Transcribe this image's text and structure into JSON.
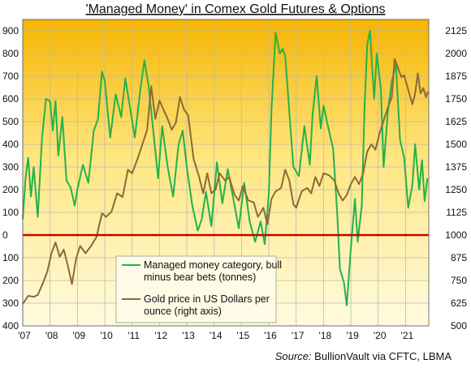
{
  "chart_data": {
    "type": "line",
    "title": "'Managed Money' in Comex Gold Futures & Options",
    "source_label": "Source:",
    "source_text": "BullionVault via CFTC, LBMA",
    "x_tick_labels": [
      "'07",
      "'08",
      "'09",
      "'10",
      "'11",
      "'12",
      "'13",
      "'14",
      "'15",
      "'16",
      "'17",
      "'18",
      "'19",
      "'20",
      "'21"
    ],
    "x_ticks": [
      2007,
      2008,
      2009,
      2010,
      2011,
      2012,
      2013,
      2014,
      2015,
      2016,
      2017,
      2018,
      2019,
      2020,
      2021
    ],
    "xlim": [
      2007.0,
      2021.85
    ],
    "left_axis": {
      "ylim": [
        -400,
        950
      ],
      "ticks": [
        -400,
        -300,
        -200,
        -100,
        0,
        100,
        200,
        300,
        400,
        500,
        600,
        700,
        800,
        900
      ],
      "tick_labels": [
        "400",
        "300",
        "200",
        "100",
        "0",
        "100",
        "200",
        "300",
        "400",
        "500",
        "600",
        "700",
        "800",
        "900"
      ]
    },
    "right_axis": {
      "ylim": [
        500,
        2187.5
      ],
      "ticks": [
        500,
        625,
        750,
        875,
        1000,
        1125,
        1250,
        1375,
        1500,
        1625,
        1750,
        1875,
        2000,
        2125
      ]
    },
    "zero_line": {
      "value": 0,
      "color": "#cc0000"
    },
    "legend_position": "lower-center",
    "series": [
      {
        "name": "Managed money category, bull minus bear bets (tonnes)",
        "axis": "left",
        "color": "#22b24c",
        "points": [
          [
            2007.0,
            70
          ],
          [
            2007.1,
            250
          ],
          [
            2007.2,
            340
          ],
          [
            2007.3,
            170
          ],
          [
            2007.4,
            300
          ],
          [
            2007.55,
            80
          ],
          [
            2007.7,
            420
          ],
          [
            2007.85,
            600
          ],
          [
            2008.0,
            590
          ],
          [
            2008.1,
            460
          ],
          [
            2008.2,
            590
          ],
          [
            2008.3,
            350
          ],
          [
            2008.45,
            520
          ],
          [
            2008.6,
            240
          ],
          [
            2008.75,
            210
          ],
          [
            2008.9,
            130
          ],
          [
            2009.0,
            200
          ],
          [
            2009.2,
            310
          ],
          [
            2009.4,
            230
          ],
          [
            2009.6,
            460
          ],
          [
            2009.75,
            510
          ],
          [
            2009.9,
            720
          ],
          [
            2010.0,
            680
          ],
          [
            2010.2,
            430
          ],
          [
            2010.4,
            620
          ],
          [
            2010.6,
            520
          ],
          [
            2010.75,
            690
          ],
          [
            2010.9,
            580
          ],
          [
            2011.1,
            430
          ],
          [
            2011.3,
            640
          ],
          [
            2011.45,
            770
          ],
          [
            2011.6,
            660
          ],
          [
            2011.8,
            430
          ],
          [
            2011.95,
            250
          ],
          [
            2012.1,
            480
          ],
          [
            2012.3,
            300
          ],
          [
            2012.5,
            170
          ],
          [
            2012.7,
            400
          ],
          [
            2012.85,
            460
          ],
          [
            2013.0,
            300
          ],
          [
            2013.2,
            130
          ],
          [
            2013.4,
            20
          ],
          [
            2013.55,
            70
          ],
          [
            2013.7,
            190
          ],
          [
            2013.9,
            40
          ],
          [
            2014.1,
            320
          ],
          [
            2014.3,
            140
          ],
          [
            2014.5,
            290
          ],
          [
            2014.7,
            160
          ],
          [
            2014.9,
            30
          ],
          [
            2015.1,
            230
          ],
          [
            2015.3,
            60
          ],
          [
            2015.5,
            -30
          ],
          [
            2015.7,
            60
          ],
          [
            2015.85,
            -40
          ],
          [
            2016.0,
            180
          ],
          [
            2016.1,
            560
          ],
          [
            2016.25,
            890
          ],
          [
            2016.4,
            800
          ],
          [
            2016.5,
            820
          ],
          [
            2016.6,
            790
          ],
          [
            2016.8,
            460
          ],
          [
            2016.9,
            300
          ],
          [
            2017.1,
            260
          ],
          [
            2017.3,
            480
          ],
          [
            2017.5,
            310
          ],
          [
            2017.6,
            530
          ],
          [
            2017.75,
            700
          ],
          [
            2017.9,
            470
          ],
          [
            2018.0,
            570
          ],
          [
            2018.2,
            460
          ],
          [
            2018.35,
            380
          ],
          [
            2018.5,
            100
          ],
          [
            2018.6,
            -150
          ],
          [
            2018.75,
            -210
          ],
          [
            2018.85,
            -310
          ],
          [
            2019.0,
            -60
          ],
          [
            2019.15,
            160
          ],
          [
            2019.25,
            -30
          ],
          [
            2019.4,
            130
          ],
          [
            2019.5,
            560
          ],
          [
            2019.6,
            840
          ],
          [
            2019.7,
            900
          ],
          [
            2019.85,
            600
          ],
          [
            2019.95,
            800
          ],
          [
            2020.1,
            640
          ],
          [
            2020.2,
            300
          ],
          [
            2020.35,
            540
          ],
          [
            2020.5,
            680
          ],
          [
            2020.65,
            750
          ],
          [
            2020.8,
            420
          ],
          [
            2020.95,
            340
          ],
          [
            2021.1,
            120
          ],
          [
            2021.25,
            220
          ],
          [
            2021.35,
            400
          ],
          [
            2021.5,
            200
          ],
          [
            2021.6,
            330
          ],
          [
            2021.7,
            150
          ],
          [
            2021.8,
            250
          ]
        ]
      },
      {
        "name": "Gold price in US Dollars per ounce (right axis)",
        "axis": "right",
        "color": "#8b6a38",
        "points": [
          [
            2007.0,
            620
          ],
          [
            2007.2,
            665
          ],
          [
            2007.4,
            660
          ],
          [
            2007.55,
            670
          ],
          [
            2007.75,
            740
          ],
          [
            2007.9,
            800
          ],
          [
            2008.05,
            900
          ],
          [
            2008.2,
            960
          ],
          [
            2008.35,
            880
          ],
          [
            2008.5,
            920
          ],
          [
            2008.65,
            830
          ],
          [
            2008.8,
            730
          ],
          [
            2008.95,
            870
          ],
          [
            2009.1,
            940
          ],
          [
            2009.3,
            900
          ],
          [
            2009.5,
            940
          ],
          [
            2009.7,
            990
          ],
          [
            2009.9,
            1120
          ],
          [
            2010.05,
            1100
          ],
          [
            2010.25,
            1130
          ],
          [
            2010.45,
            1230
          ],
          [
            2010.65,
            1210
          ],
          [
            2010.85,
            1360
          ],
          [
            2011.0,
            1340
          ],
          [
            2011.2,
            1420
          ],
          [
            2011.4,
            1510
          ],
          [
            2011.55,
            1580
          ],
          [
            2011.7,
            1820
          ],
          [
            2011.85,
            1640
          ],
          [
            2012.0,
            1740
          ],
          [
            2012.15,
            1690
          ],
          [
            2012.3,
            1640
          ],
          [
            2012.45,
            1580
          ],
          [
            2012.6,
            1620
          ],
          [
            2012.75,
            1760
          ],
          [
            2012.9,
            1690
          ],
          [
            2013.05,
            1660
          ],
          [
            2013.25,
            1420
          ],
          [
            2013.45,
            1320
          ],
          [
            2013.6,
            1230
          ],
          [
            2013.75,
            1340
          ],
          [
            2013.9,
            1230
          ],
          [
            2014.05,
            1250
          ],
          [
            2014.2,
            1340
          ],
          [
            2014.4,
            1300
          ],
          [
            2014.55,
            1320
          ],
          [
            2014.75,
            1220
          ],
          [
            2014.9,
            1190
          ],
          [
            2015.05,
            1270
          ],
          [
            2015.25,
            1190
          ],
          [
            2015.45,
            1180
          ],
          [
            2015.6,
            1100
          ],
          [
            2015.8,
            1150
          ],
          [
            2015.95,
            1060
          ],
          [
            2016.1,
            1200
          ],
          [
            2016.25,
            1240
          ],
          [
            2016.45,
            1260
          ],
          [
            2016.6,
            1360
          ],
          [
            2016.75,
            1300
          ],
          [
            2016.9,
            1170
          ],
          [
            2017.0,
            1150
          ],
          [
            2017.2,
            1240
          ],
          [
            2017.4,
            1260
          ],
          [
            2017.55,
            1230
          ],
          [
            2017.7,
            1320
          ],
          [
            2017.85,
            1270
          ],
          [
            2018.0,
            1340
          ],
          [
            2018.2,
            1330
          ],
          [
            2018.4,
            1300
          ],
          [
            2018.55,
            1230
          ],
          [
            2018.7,
            1190
          ],
          [
            2018.85,
            1220
          ],
          [
            2019.0,
            1280
          ],
          [
            2019.15,
            1320
          ],
          [
            2019.3,
            1280
          ],
          [
            2019.45,
            1340
          ],
          [
            2019.6,
            1460
          ],
          [
            2019.75,
            1500
          ],
          [
            2019.9,
            1470
          ],
          [
            2020.05,
            1560
          ],
          [
            2020.2,
            1630
          ],
          [
            2020.35,
            1700
          ],
          [
            2020.5,
            1760
          ],
          [
            2020.6,
            1970
          ],
          [
            2020.7,
            1930
          ],
          [
            2020.85,
            1870
          ],
          [
            2020.95,
            1880
          ],
          [
            2021.1,
            1800
          ],
          [
            2021.25,
            1720
          ],
          [
            2021.35,
            1780
          ],
          [
            2021.45,
            1890
          ],
          [
            2021.55,
            1780
          ],
          [
            2021.65,
            1810
          ],
          [
            2021.75,
            1760
          ],
          [
            2021.82,
            1790
          ]
        ]
      }
    ]
  }
}
